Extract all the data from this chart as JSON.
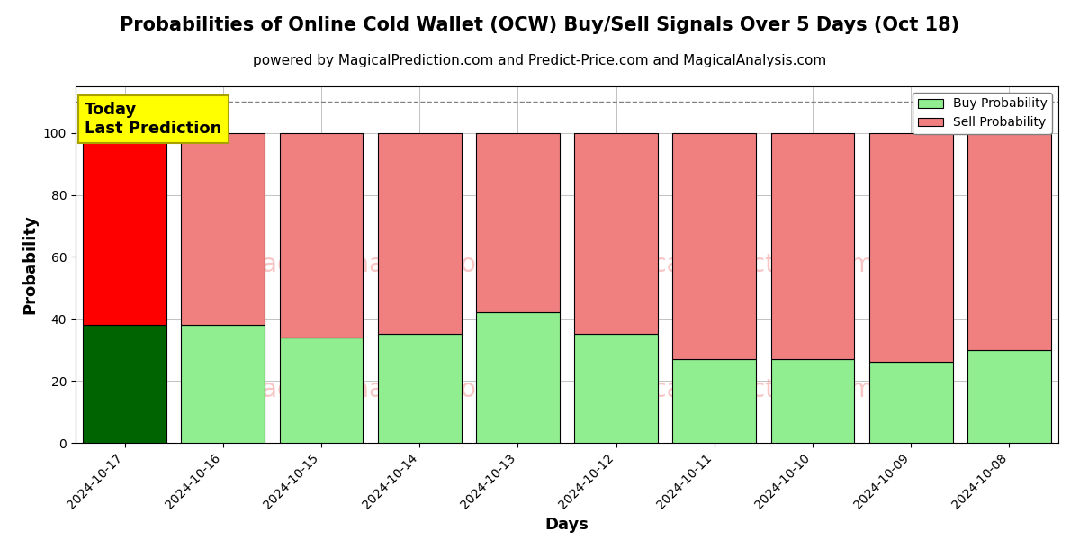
{
  "title": "Probabilities of Online Cold Wallet (OCW) Buy/Sell Signals Over 5 Days (Oct 18)",
  "subtitle": "powered by MagicalPrediction.com and Predict-Price.com and MagicalAnalysis.com",
  "xlabel": "Days",
  "ylabel": "Probability",
  "categories": [
    "2024-10-17",
    "2024-10-16",
    "2024-10-15",
    "2024-10-14",
    "2024-10-13",
    "2024-10-12",
    "2024-10-11",
    "2024-10-10",
    "2024-10-09",
    "2024-10-08"
  ],
  "buy_values": [
    38,
    38,
    34,
    35,
    42,
    35,
    27,
    27,
    26,
    30
  ],
  "sell_values": [
    62,
    62,
    66,
    65,
    58,
    65,
    73,
    73,
    74,
    70
  ],
  "today_buy_color": "#006400",
  "today_sell_color": "#ff0000",
  "other_buy_color": "#90ee90",
  "other_sell_color": "#f08080",
  "bar_edge_color": "#000000",
  "today_annotation": "Today\nLast Prediction",
  "today_annotation_bg": "#ffff00",
  "dashed_line_y": 110,
  "ylim": [
    0,
    115
  ],
  "yticks": [
    0,
    20,
    40,
    60,
    80,
    100
  ],
  "legend_buy_color": "#90ee90",
  "legend_sell_color": "#f08080",
  "watermark_color": "#f08080",
  "grid_color": "#aaaaaa",
  "title_fontsize": 15,
  "subtitle_fontsize": 11,
  "axis_label_fontsize": 13,
  "tick_fontsize": 10,
  "bar_width": 0.85
}
